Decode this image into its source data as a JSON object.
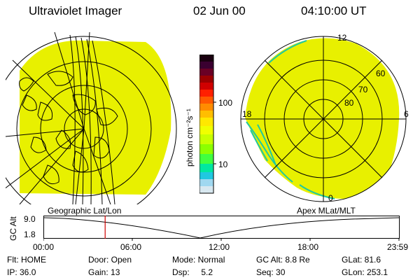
{
  "header": {
    "title": "Ultraviolet Imager",
    "date": "02 Jun 00",
    "time": "04:10:00 UT"
  },
  "colorbar": {
    "label": "photon cm⁻²s⁻¹",
    "ticks": [
      "100",
      "10"
    ],
    "colors": [
      "#1a0010",
      "#3a0030",
      "#6a0025",
      "#9c0000",
      "#d00000",
      "#ff2000",
      "#ff5a00",
      "#ff8c00",
      "#ffbe00",
      "#ffe800",
      "#f0ff00",
      "#c8ff00",
      "#8cff00",
      "#40ff40",
      "#00e8a0",
      "#20c8e0",
      "#a0d8f0",
      "#d8e8f0"
    ]
  },
  "left_map": {
    "caption": "Geographic Lat/Lon"
  },
  "right_map": {
    "caption": "Apex MLat/MLT",
    "mlt_labels": [
      "12",
      "18",
      "6",
      "0"
    ],
    "lat_labels": [
      "60",
      "70",
      "80"
    ]
  },
  "altitude_plot": {
    "axis_label": "GC Alt",
    "y_ticks": [
      "9.0",
      "1.8"
    ],
    "x_ticks": [
      "00:00",
      "06:00",
      "12:00",
      "18:00",
      "23:59"
    ],
    "marker_fraction": 0.172
  },
  "info": {
    "row1": [
      "Flt: HOME",
      "Door: Open",
      "Mode: Normal",
      "GC Alt: 8.8 Re",
      "GLat:  81.6"
    ],
    "row2": [
      "IP: 36.0",
      "Gain: 13",
      "Dsp:     5.2",
      "Seq: 30",
      "GLon: 253.1"
    ]
  },
  "colors": {
    "image_fill": "#e8f000",
    "marker": "#d00000"
  }
}
